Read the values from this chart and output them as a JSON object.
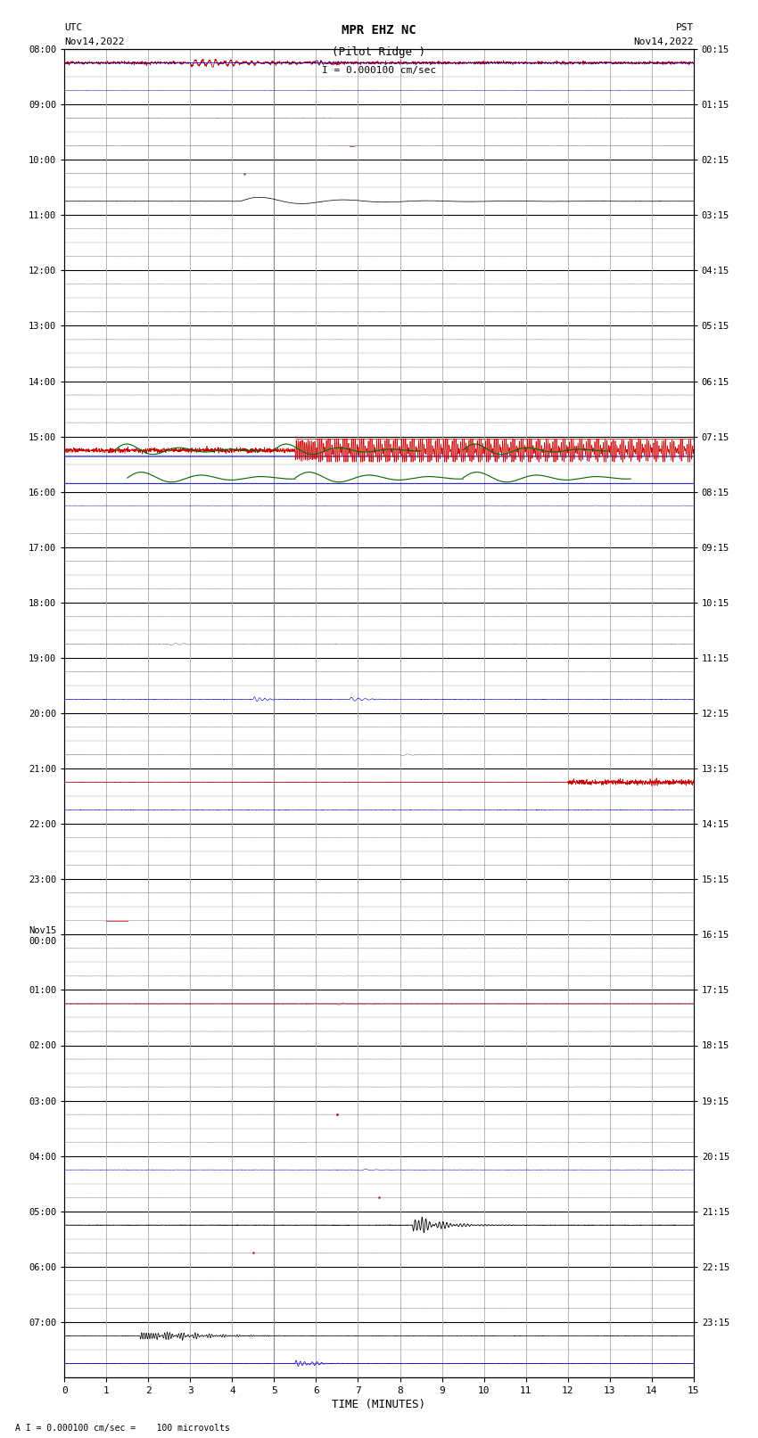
{
  "title_line1": "MPR EHZ NC",
  "title_line2": "(Pilot Ridge )",
  "scale_label": "I = 0.000100 cm/sec",
  "footer_label": "A I = 0.000100 cm/sec =    100 microvolts",
  "xlabel": "TIME (MINUTES)",
  "left_times": [
    "08:00",
    "",
    "09:00",
    "",
    "10:00",
    "",
    "11:00",
    "",
    "12:00",
    "",
    "13:00",
    "",
    "14:00",
    "",
    "15:00",
    "",
    "16:00",
    "",
    "17:00",
    "",
    "18:00",
    "",
    "19:00",
    "",
    "20:00",
    "",
    "21:00",
    "",
    "22:00",
    "",
    "23:00",
    "",
    "Nov15\n00:00",
    "",
    "01:00",
    "",
    "02:00",
    "",
    "03:00",
    "",
    "04:00",
    "",
    "05:00",
    "",
    "06:00",
    "",
    "07:00",
    ""
  ],
  "right_times": [
    "00:15",
    "",
    "01:15",
    "",
    "02:15",
    "",
    "03:15",
    "",
    "04:15",
    "",
    "05:15",
    "",
    "06:15",
    "",
    "07:15",
    "",
    "08:15",
    "",
    "09:15",
    "",
    "10:15",
    "",
    "11:15",
    "",
    "12:15",
    "",
    "13:15",
    "",
    "14:15",
    "",
    "15:15",
    "",
    "16:15",
    "",
    "17:15",
    "",
    "18:15",
    "",
    "19:15",
    "",
    "20:15",
    "",
    "21:15",
    "",
    "22:15",
    "",
    "23:15",
    ""
  ],
  "n_rows": 48,
  "minutes_per_row": 15,
  "bg_color": "#ffffff",
  "major_grid_color": "#000000",
  "minor_grid_color": "#aaaaaa",
  "vert_grid_color": "#aaaaaa"
}
